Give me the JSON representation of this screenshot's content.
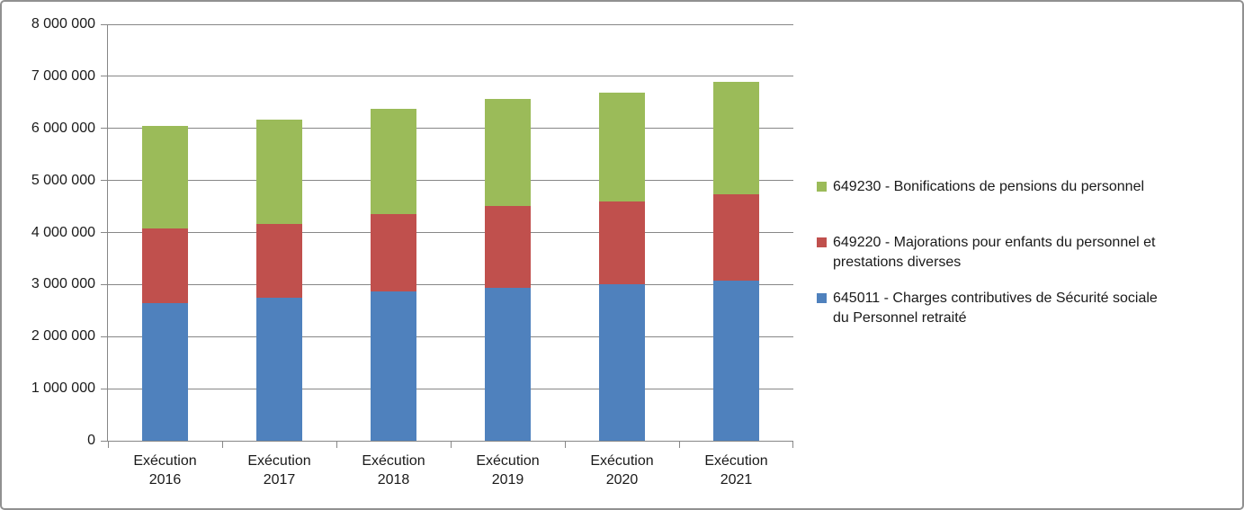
{
  "colors": {
    "frame_border": "#909090",
    "gridline": "#878787",
    "axis": "#878787",
    "text": "#1a1a1a",
    "background": "#ffffff",
    "series_blue": "#4F81BD",
    "series_red": "#C0504D",
    "series_green": "#9BBB59"
  },
  "chart_data": {
    "type": "bar",
    "stacked": true,
    "title": "",
    "xlabel": "",
    "ylabel": "",
    "ylim": [
      0,
      8000000
    ],
    "ytick_values": [
      0,
      1000000,
      2000000,
      3000000,
      4000000,
      5000000,
      6000000,
      7000000,
      8000000
    ],
    "ytick_labels": [
      "0",
      "1 000 000",
      "2 000 000",
      "3 000 000",
      "4 000 000",
      "5 000 000",
      "6 000 000",
      "7 000 000",
      "8 000 000"
    ],
    "grid": true,
    "legend_position": "right",
    "categories": [
      {
        "label": "Exécution 2016",
        "lines": [
          "Exécution",
          "2016"
        ]
      },
      {
        "label": "Exécution 2017",
        "lines": [
          "Exécution",
          "2017"
        ]
      },
      {
        "label": "Exécution 2018",
        "lines": [
          "Exécution",
          "2018"
        ]
      },
      {
        "label": "Exécution 2019",
        "lines": [
          "Exécution",
          "2019"
        ]
      },
      {
        "label": "Exécution 2020",
        "lines": [
          "Exécution",
          "2020"
        ]
      },
      {
        "label": "Exécution 2021",
        "lines": [
          "Exécution",
          "2021"
        ]
      }
    ],
    "series": [
      {
        "name": "645011 - Charges contributives de Sécurité sociale du Personnel retraité",
        "color": "#4F81BD",
        "values": [
          2650000,
          2750000,
          2860000,
          2940000,
          3000000,
          3080000
        ]
      },
      {
        "name": "649220 - Majorations pour enfants du personnel et prestations diverses",
        "color": "#C0504D",
        "values": [
          1430000,
          1410000,
          1500000,
          1570000,
          1590000,
          1650000
        ]
      },
      {
        "name": "649230 - Bonifications de pensions du personnel",
        "color": "#9BBB59",
        "values": [
          1960000,
          2000000,
          2020000,
          2060000,
          2090000,
          2160000
        ]
      }
    ],
    "stack_totals": [
      6040000,
      6160000,
      6380000,
      6570000,
      6680000,
      6890000
    ],
    "legend": {
      "entries": [
        {
          "series_code": "649230",
          "color": "#9BBB59",
          "lines": [
            "649230 - Bonifications de pensions du personnel"
          ]
        },
        {
          "series_code": "649220",
          "color": "#C0504D",
          "lines": [
            "649220 - Majorations pour enfants du personnel et",
            "prestations diverses"
          ]
        },
        {
          "series_code": "645011",
          "color": "#4F81BD",
          "lines": [
            "645011 - Charges contributives de Sécurité sociale",
            "du Personnel retraité"
          ]
        }
      ]
    }
  }
}
